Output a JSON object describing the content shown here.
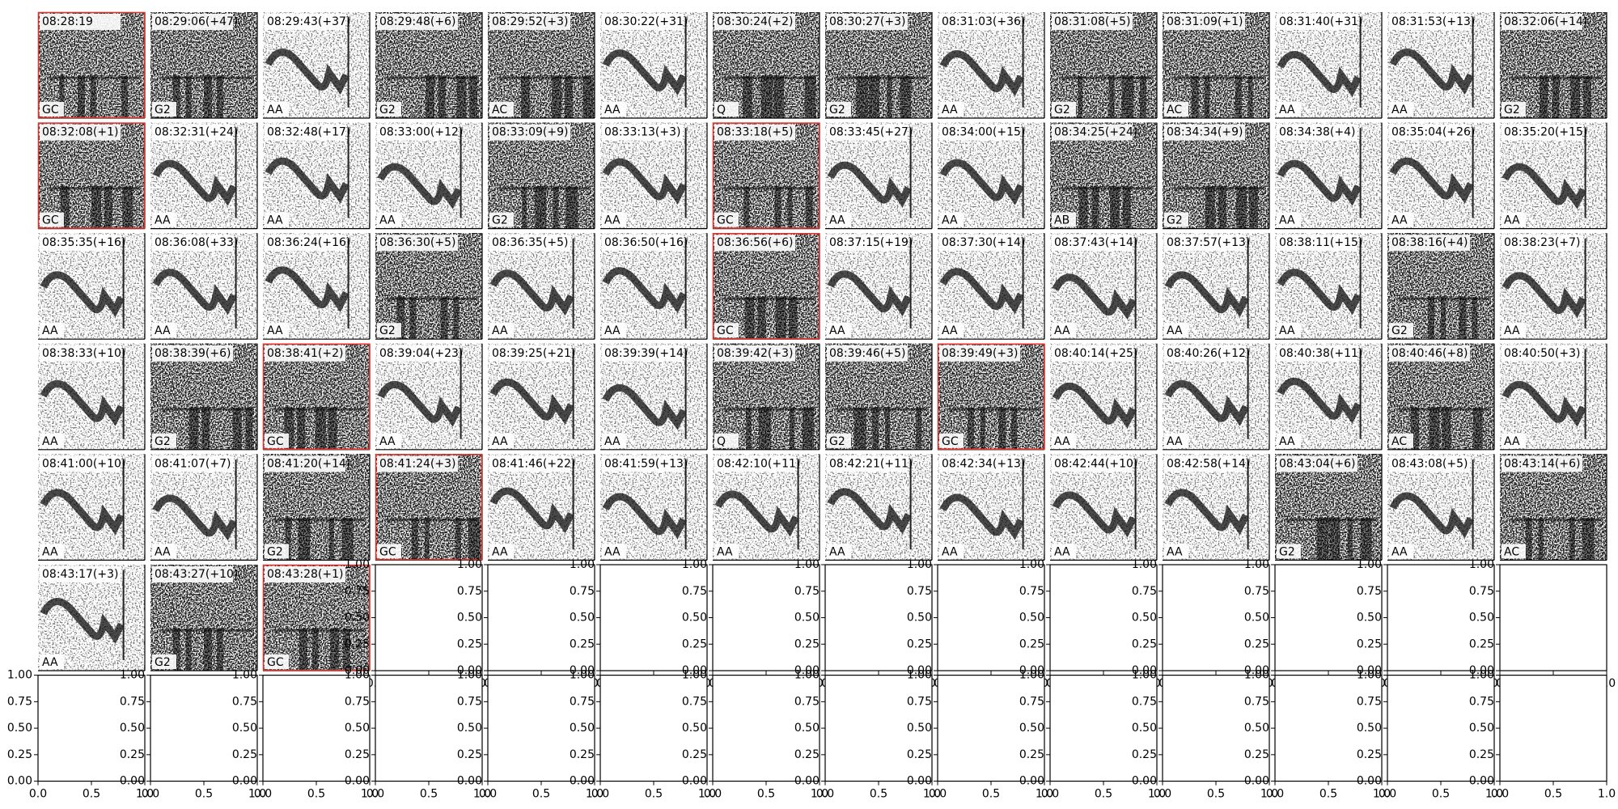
{
  "panels": [
    {
      "title": "08:28:19",
      "label": "GC",
      "highlight": true
    },
    {
      "title": "08:29:06(+47)",
      "label": "G2"
    },
    {
      "title": "08:29:43(+37)",
      "label": "AA"
    },
    {
      "title": "08:29:48(+6)",
      "label": "G2"
    },
    {
      "title": "08:29:52(+3)",
      "label": "AC"
    },
    {
      "title": "08:30:22(+31)",
      "label": "AA"
    },
    {
      "title": "08:30:24(+2)",
      "label": "Q"
    },
    {
      "title": "08:30:27(+3)",
      "label": "G2"
    },
    {
      "title": "08:31:03(+36)",
      "label": "AA"
    },
    {
      "title": "08:31:08(+5)",
      "label": "G2"
    },
    {
      "title": "08:31:09(+1)",
      "label": "AC"
    },
    {
      "title": "08:31:40(+31)",
      "label": "AA"
    },
    {
      "title": "08:31:53(+13)",
      "label": "AA"
    },
    {
      "title": "08:32:06(+14)",
      "label": "G2"
    },
    {
      "title": "08:32:08(+1)",
      "label": "GC",
      "highlight": true
    },
    {
      "title": "08:32:31(+24)",
      "label": "AA"
    },
    {
      "title": "08:32:48(+17)",
      "label": "AA"
    },
    {
      "title": "08:33:00(+12)",
      "label": "AA"
    },
    {
      "title": "08:33:09(+9)",
      "label": "G2"
    },
    {
      "title": "08:33:13(+3)",
      "label": "AA"
    },
    {
      "title": "08:33:18(+5)",
      "label": "GC",
      "highlight": true
    },
    {
      "title": "08:33:45(+27)",
      "label": "AA"
    },
    {
      "title": "08:34:00(+15)",
      "label": "AA"
    },
    {
      "title": "08:34:25(+24)",
      "label": "AB"
    },
    {
      "title": "08:34:34(+9)",
      "label": "G2"
    },
    {
      "title": "08:34:38(+4)",
      "label": "AA"
    },
    {
      "title": "08:35:04(+26)",
      "label": "AA"
    },
    {
      "title": "08:35:20(+15)",
      "label": "AA"
    },
    {
      "title": "08:35:35(+16)",
      "label": "AA"
    },
    {
      "title": "08:36:08(+33)",
      "label": "AA"
    },
    {
      "title": "08:36:24(+16)",
      "label": "AA"
    },
    {
      "title": "08:36:30(+5)",
      "label": "G2"
    },
    {
      "title": "08:36:35(+5)",
      "label": "AA"
    },
    {
      "title": "08:36:50(+16)",
      "label": "AA"
    },
    {
      "title": "08:36:56(+6)",
      "label": "GC",
      "highlight": true
    },
    {
      "title": "08:37:15(+19)",
      "label": "AA"
    },
    {
      "title": "08:37:30(+14)",
      "label": "AA"
    },
    {
      "title": "08:37:43(+14)",
      "label": "AA"
    },
    {
      "title": "08:37:57(+13)",
      "label": "AA"
    },
    {
      "title": "08:38:11(+15)",
      "label": "AA"
    },
    {
      "title": "08:38:16(+4)",
      "label": "G2"
    },
    {
      "title": "08:38:23(+7)",
      "label": "AA"
    },
    {
      "title": "08:38:33(+10)",
      "label": "AA"
    },
    {
      "title": "08:38:39(+6)",
      "label": "G2"
    },
    {
      "title": "08:38:41(+2)",
      "label": "GC",
      "highlight": true
    },
    {
      "title": "08:39:04(+23)",
      "label": "AA"
    },
    {
      "title": "08:39:25(+21)",
      "label": "AA"
    },
    {
      "title": "08:39:39(+14)",
      "label": "AA"
    },
    {
      "title": "08:39:42(+3)",
      "label": "Q"
    },
    {
      "title": "08:39:46(+5)",
      "label": "G2"
    },
    {
      "title": "08:39:49(+3)",
      "label": "GC",
      "highlight": true
    },
    {
      "title": "08:40:14(+25)",
      "label": "AA"
    },
    {
      "title": "08:40:26(+12)",
      "label": "AA"
    },
    {
      "title": "08:40:38(+11)",
      "label": "AA"
    },
    {
      "title": "08:40:46(+8)",
      "label": "AC"
    },
    {
      "title": "08:40:50(+3)",
      "label": "AA"
    },
    {
      "title": "08:41:00(+10)",
      "label": "AA"
    },
    {
      "title": "08:41:07(+7)",
      "label": "AA"
    },
    {
      "title": "08:41:20(+14)",
      "label": "G2"
    },
    {
      "title": "08:41:24(+3)",
      "label": "GC",
      "highlight": true
    },
    {
      "title": "08:41:46(+22)",
      "label": "AA"
    },
    {
      "title": "08:41:59(+13)",
      "label": "AA"
    },
    {
      "title": "08:42:10(+11)",
      "label": "AA"
    },
    {
      "title": "08:42:21(+11)",
      "label": "AA"
    },
    {
      "title": "08:42:34(+13)",
      "label": "AA"
    },
    {
      "title": "08:42:44(+10)",
      "label": "AA"
    },
    {
      "title": "08:42:58(+14)",
      "label": "AA"
    },
    {
      "title": "08:43:04(+6)",
      "label": "G2"
    },
    {
      "title": "08:43:08(+5)",
      "label": "AA"
    },
    {
      "title": "08:43:14(+6)",
      "label": "AC"
    },
    {
      "title": "08:43:17(+3)",
      "label": "AA"
    },
    {
      "title": "08:43:27(+10)",
      "label": "G2"
    },
    {
      "title": "08:43:28(+1)",
      "label": "GC",
      "highlight": true
    }
  ],
  "empty_axes": {
    "xlim": [
      0,
      1
    ],
    "ylim": [
      0,
      1
    ],
    "xticks": [
      {
        "value": 0,
        "label": "0.0"
      },
      {
        "value": 0.5,
        "label": "0.5"
      },
      {
        "value": 1,
        "label": "1.0"
      }
    ],
    "yticks": [
      {
        "value": 0,
        "label": "0.00"
      },
      {
        "value": 0.25,
        "label": "0.25"
      },
      {
        "value": 0.5,
        "label": "0.50"
      },
      {
        "value": 0.75,
        "label": "0.75"
      },
      {
        "value": 1,
        "label": "1.00"
      }
    ],
    "highlight_color": "#e8302a"
  }
}
